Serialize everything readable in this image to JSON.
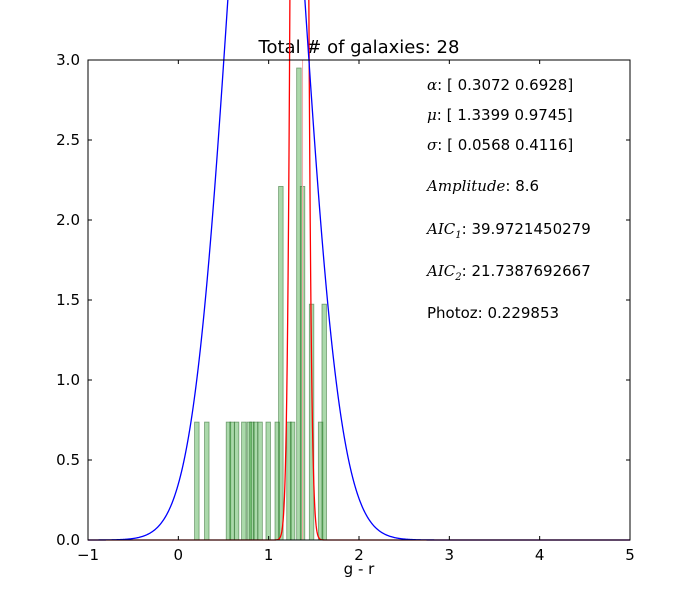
{
  "chart_data": {
    "type": "bar",
    "title": "Total # of galaxies: 28",
    "xlabel": "g - r",
    "ylabel": "",
    "xlim": [
      -1,
      5
    ],
    "ylim": [
      0,
      3.0
    ],
    "x_ticks": [
      "−1",
      "0",
      "1",
      "2",
      "3",
      "4",
      "5"
    ],
    "x_tick_values": [
      -1,
      0,
      1,
      2,
      3,
      4,
      5
    ],
    "y_ticks": [
      "0.0",
      "0.5",
      "1.0",
      "1.5",
      "2.0",
      "2.5",
      "3.0"
    ],
    "y_tick_values": [
      0.0,
      0.5,
      1.0,
      1.5,
      2.0,
      2.5,
      3.0
    ],
    "grid": false,
    "histogram": {
      "color": "#2ca02c",
      "bins": [
        {
          "left": 0.18,
          "width": 0.05,
          "value": 0.737
        },
        {
          "left": 0.29,
          "width": 0.05,
          "value": 0.737
        },
        {
          "left": 0.53,
          "width": 0.05,
          "value": 0.737
        },
        {
          "left": 0.57,
          "width": 0.05,
          "value": 0.737
        },
        {
          "left": 0.62,
          "width": 0.05,
          "value": 0.737
        },
        {
          "left": 0.7,
          "width": 0.05,
          "value": 0.737
        },
        {
          "left": 0.76,
          "width": 0.05,
          "value": 0.737
        },
        {
          "left": 0.79,
          "width": 0.05,
          "value": 0.737
        },
        {
          "left": 0.83,
          "width": 0.05,
          "value": 0.737
        },
        {
          "left": 0.88,
          "width": 0.05,
          "value": 0.737
        },
        {
          "left": 0.97,
          "width": 0.05,
          "value": 0.737
        },
        {
          "left": 1.07,
          "width": 0.05,
          "value": 0.737
        },
        {
          "left": 1.11,
          "width": 0.05,
          "value": 2.21
        },
        {
          "left": 1.2,
          "width": 0.05,
          "value": 0.737
        },
        {
          "left": 1.24,
          "width": 0.05,
          "value": 0.737
        },
        {
          "left": 1.31,
          "width": 0.05,
          "value": 2.95
        },
        {
          "left": 1.35,
          "width": 0.05,
          "value": 2.21
        },
        {
          "left": 1.45,
          "width": 0.05,
          "value": 1.474
        },
        {
          "left": 1.55,
          "width": 0.05,
          "value": 0.737
        },
        {
          "left": 1.59,
          "width": 0.05,
          "value": 1.474
        }
      ]
    },
    "series": [
      {
        "component": 1,
        "color": "#ff0000",
        "alpha": 0.3072,
        "mu": 1.3399,
        "sigma": 0.0568
      },
      {
        "component": 2,
        "color": "#0000ff",
        "alpha": 0.6928,
        "mu": 0.9745,
        "sigma": 0.4116
      }
    ],
    "amplitude": 8.6,
    "vertical_line": {
      "x": 1.375,
      "color": "#f4a9a9"
    },
    "annotations": [
      {
        "sym": "α",
        "text": ": [ 0.3072  0.6928]"
      },
      {
        "sym": "μ",
        "text": ": [ 1.3399  0.9745]"
      },
      {
        "sym": "σ",
        "text": ": [ 0.0568  0.4116]"
      },
      {
        "sym": "Amplitude",
        "text": ": 8.6"
      },
      {
        "sym": "AIC",
        "sub": "1",
        "text": ": 39.9721450279"
      },
      {
        "sym": "AIC",
        "sub": "2",
        "text": ": 21.7387692667"
      },
      {
        "sym": "",
        "text": "Photoz: 0.229853"
      }
    ]
  }
}
